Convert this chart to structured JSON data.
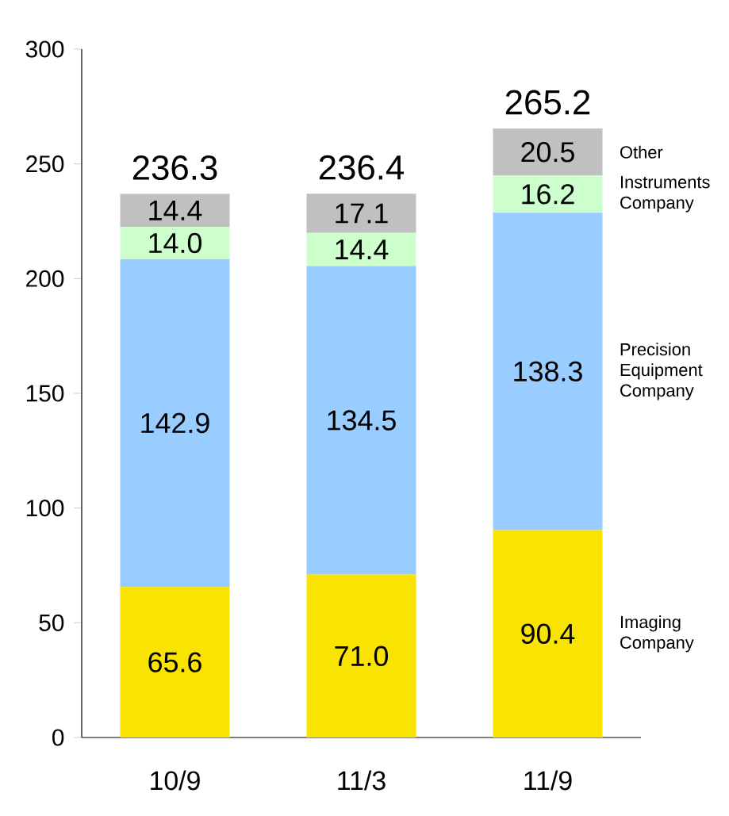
{
  "chart_data": {
    "type": "bar",
    "stacked": true,
    "categories": [
      "10/9",
      "11/3",
      "11/9"
    ],
    "series": [
      {
        "name": "Imaging Company",
        "color": "#f9e300",
        "values": [
          65.6,
          71.0,
          90.4
        ],
        "value_labels": [
          "65.6",
          "71.0",
          "90.4"
        ]
      },
      {
        "name": "Precision Equipment Company",
        "color": "#99ccff",
        "values": [
          142.9,
          134.5,
          138.3
        ],
        "value_labels": [
          "142.9",
          "134.5",
          "138.3"
        ]
      },
      {
        "name": "Instruments Company",
        "color": "#ccffcc",
        "values": [
          14.0,
          14.4,
          16.2
        ],
        "value_labels": [
          "14.0",
          "14.4",
          "16.2"
        ]
      },
      {
        "name": "Other",
        "color": "#c0c0c0",
        "values": [
          14.4,
          17.1,
          20.5
        ],
        "value_labels": [
          "14.4",
          "17.1",
          "20.5"
        ]
      }
    ],
    "annotations": [
      "236.3",
      "236.4",
      "265.2"
    ],
    "grid": false,
    "ylim": [
      0,
      300
    ],
    "yticks": [
      0,
      50,
      100,
      150,
      200,
      250,
      300
    ]
  }
}
